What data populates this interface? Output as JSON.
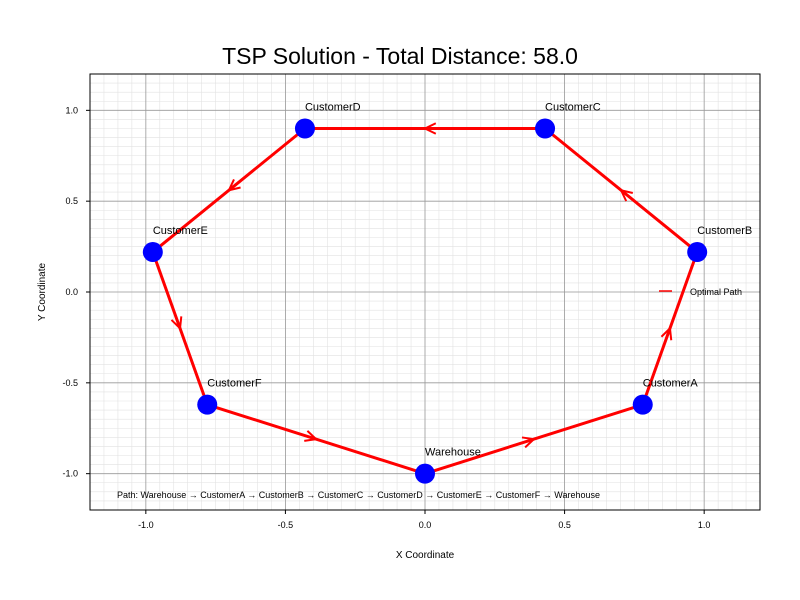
{
  "chart_data": {
    "type": "scatter",
    "title": "TSP Solution - Total Distance: 58.0",
    "xlabel": "X Coordinate",
    "ylabel": "Y Coordinate",
    "xlim": [
      -1.2,
      1.2
    ],
    "ylim": [
      -1.2,
      1.2
    ],
    "xticks": [
      -1.0,
      -0.5,
      0.0,
      0.5,
      1.0
    ],
    "yticks": [
      -1.0,
      -0.5,
      0.0,
      0.5,
      1.0
    ],
    "xtick_labels": [
      "-1.0",
      "-0.5",
      "0.0",
      "0.5",
      "1.0"
    ],
    "ytick_labels": [
      "-1.0",
      "-0.5",
      "0.0",
      "0.5",
      "1.0"
    ],
    "grid": true,
    "minor_grid": true,
    "legend_position": "right",
    "nodes": [
      {
        "name": "Warehouse",
        "x": 0.0,
        "y": -1.0
      },
      {
        "name": "CustomerA",
        "x": 0.78,
        "y": -0.62
      },
      {
        "name": "CustomerB",
        "x": 0.975,
        "y": 0.22
      },
      {
        "name": "CustomerC",
        "x": 0.43,
        "y": 0.9
      },
      {
        "name": "CustomerD",
        "x": -0.43,
        "y": 0.9
      },
      {
        "name": "CustomerE",
        "x": -0.975,
        "y": 0.22
      },
      {
        "name": "CustomerF",
        "x": -0.78,
        "y": -0.62
      }
    ],
    "route": [
      "Warehouse",
      "CustomerA",
      "CustomerB",
      "CustomerC",
      "CustomerD",
      "CustomerE",
      "CustomerF",
      "Warehouse"
    ],
    "series": [
      {
        "name": "Optimal Path",
        "color": "#ff0000"
      }
    ],
    "node_color": "#0000ff",
    "path_text": "Path: Warehouse → CustomerA → CustomerB → CustomerC → CustomerD → CustomerE → CustomerF → Warehouse"
  }
}
